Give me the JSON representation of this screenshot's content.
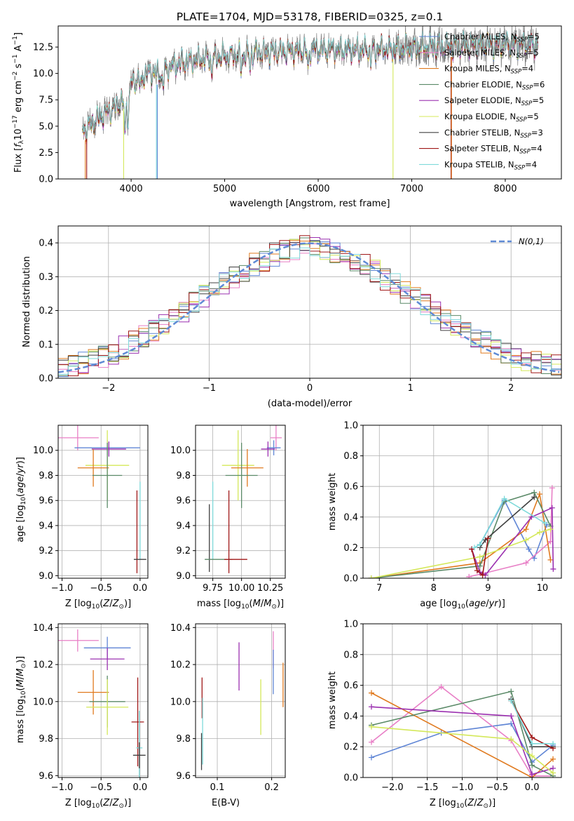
{
  "title": "PLATE=1704, MJD=53178, FIBERID=0325, z=0.1",
  "chart_data": [
    {
      "id": "spectrum",
      "type": "line",
      "title": "PLATE=1704, MJD=53178, FIBERID=0325, z=0.1",
      "xlabel": "wavelength [Angstrom, rest frame]",
      "ylabel": "Flux [f_λ 10^-17 erg cm^-2 s^-1 A^-1]",
      "xlim": [
        3220,
        8600
      ],
      "ylim": [
        0,
        14.5
      ],
      "xticks": [
        4000,
        5000,
        6000,
        7000,
        8000
      ],
      "yticks": [
        0.0,
        2.5,
        5.0,
        7.5,
        10.0,
        12.5
      ],
      "grid": false,
      "legend_position": "top-right",
      "data_series": {
        "name": "data",
        "color": "#808080"
      },
      "spectrum_shape": {
        "wavelength": [
          3500,
          3600,
          3700,
          3800,
          3900,
          4000,
          4100,
          4200,
          4300,
          4400,
          4500,
          4600,
          4800,
          5000,
          5200,
          5500,
          6000,
          6500,
          7000,
          7500,
          8000,
          8350
        ],
        "flux": [
          4.6,
          5.4,
          6.1,
          6.6,
          7.3,
          9.0,
          9.7,
          10.1,
          9.9,
          10.5,
          10.9,
          11.1,
          11.4,
          11.6,
          11.9,
          12.0,
          12.3,
          12.2,
          12.4,
          12.6,
          12.8,
          12.7
        ]
      },
      "series": [
        {
          "name": "Chabrier MILES, N_SSP=5",
          "color": "#5f85d5"
        },
        {
          "name": "Salpeter MILES, N_SSP=5",
          "color": "#e87fc6"
        },
        {
          "name": "Kroupa MILES, N_SSP=4",
          "color": "#e07a1f"
        },
        {
          "name": "Chabrier ELODIE, N_SSP=6",
          "color": "#5b8a68"
        },
        {
          "name": "Salpeter ELODIE, N_SSP=5",
          "color": "#9b30b0"
        },
        {
          "name": "Kroupa ELODIE, N_SSP=5",
          "color": "#d4e85a"
        },
        {
          "name": "Chabrier STELIB, N_SSP=3",
          "color": "#404040"
        },
        {
          "name": "Salpeter STELIB, N_SSP=4",
          "color": "#a01818"
        },
        {
          "name": "Kroupa STELIB, N_SSP=4",
          "color": "#7fdada"
        }
      ]
    },
    {
      "id": "residuals",
      "type": "step",
      "xlabel": "(data-model)/error",
      "ylabel": "Normed distribution",
      "xlim": [
        -2.5,
        2.5
      ],
      "ylim": [
        0,
        0.45
      ],
      "xticks": [
        -2,
        -1,
        0,
        1,
        2
      ],
      "yticks": [
        0.0,
        0.1,
        0.2,
        0.3,
        0.4
      ],
      "grid": true,
      "legend_position": "top-right",
      "reference": {
        "name": "N(0,1)",
        "color": "#5f8ad5",
        "mean": 0,
        "sigma": 1
      },
      "bins_center": [
        -2.45,
        -2.35,
        -2.25,
        -2.15,
        -2.05,
        -1.95,
        -1.85,
        -1.75,
        -1.65,
        -1.55,
        -1.45,
        -1.35,
        -1.25,
        -1.15,
        -1.05,
        -0.95,
        -0.85,
        -0.75,
        -0.65,
        -0.55,
        -0.45,
        -0.35,
        -0.25,
        -0.15,
        -0.05,
        0.05,
        0.15,
        0.25,
        0.35,
        0.45,
        0.55,
        0.65,
        0.75,
        0.85,
        0.95,
        1.05,
        1.15,
        1.25,
        1.35,
        1.45,
        1.55,
        1.65,
        1.75,
        1.85,
        1.95,
        2.05,
        2.15,
        2.25,
        2.35,
        2.45
      ],
      "base_values": [
        0.03,
        0.035,
        0.045,
        0.055,
        0.065,
        0.075,
        0.09,
        0.105,
        0.125,
        0.14,
        0.155,
        0.175,
        0.2,
        0.22,
        0.24,
        0.26,
        0.28,
        0.3,
        0.32,
        0.335,
        0.35,
        0.365,
        0.375,
        0.385,
        0.39,
        0.39,
        0.385,
        0.375,
        0.365,
        0.35,
        0.335,
        0.315,
        0.295,
        0.275,
        0.255,
        0.235,
        0.215,
        0.195,
        0.175,
        0.155,
        0.135,
        0.12,
        0.105,
        0.09,
        0.075,
        0.065,
        0.055,
        0.045,
        0.04,
        0.035
      ]
    },
    {
      "id": "age-vs-Z",
      "type": "errorbar",
      "xlabel": "Z [log10(Z/Z⊙)]",
      "ylabel": "age [log10(age/yr)]",
      "xlim": [
        -1.05,
        0.1
      ],
      "ylim": [
        8.98,
        10.2
      ],
      "xticks": [
        -1.0,
        -0.5,
        0.0
      ],
      "yticks": [
        9.0,
        9.2,
        9.4,
        9.6,
        9.8,
        10.0
      ],
      "grid": true,
      "points": [
        {
          "color": "#e87fc6",
          "x": -0.8,
          "xerr": 0.27,
          "y": 10.1,
          "yerr": 0.1
        },
        {
          "color": "#5f85d5",
          "x": -0.42,
          "xerr": 0.42,
          "y": 10.02,
          "yerr": 0.06
        },
        {
          "color": "#9b30b0",
          "x": -0.4,
          "xerr": 0.22,
          "y": 10.01,
          "yerr": 0.06
        },
        {
          "color": "#d4e85a",
          "x": -0.42,
          "xerr": 0.28,
          "y": 9.88,
          "yerr": 0.28
        },
        {
          "color": "#e07a1f",
          "x": -0.6,
          "xerr": 0.2,
          "y": 9.86,
          "yerr": 0.15
        },
        {
          "color": "#5b8a68",
          "x": -0.42,
          "xerr": 0.19,
          "y": 9.8,
          "yerr": 0.26
        },
        {
          "color": "#a01818",
          "x": -0.04,
          "xerr": 0.0,
          "y": 9.35,
          "yerr": 0.33
        },
        {
          "color": "#7fdada",
          "x": 0.0,
          "xerr": 0.0,
          "y": 9.44,
          "yerr": 0.31
        },
        {
          "color": "#404040",
          "x": 0.0,
          "xerr": 0.08,
          "y": 9.13,
          "yerr": 0.0
        }
      ]
    },
    {
      "id": "age-vs-mass",
      "type": "errorbar",
      "xlabel": "mass [log10(M/M⊙)]",
      "ylabel": "",
      "xlim": [
        9.6,
        10.38
      ],
      "ylim": [
        8.98,
        10.2
      ],
      "xticks": [
        9.75,
        10.0,
        10.25
      ],
      "yticks": [
        9.0,
        9.2,
        9.4,
        9.6,
        9.8,
        10.0
      ],
      "grid": true,
      "points": [
        {
          "color": "#e87fc6",
          "x": 10.3,
          "xerr": 0.05,
          "y": 10.1,
          "yerr": 0.1
        },
        {
          "color": "#5f85d5",
          "x": 10.28,
          "xerr": 0.06,
          "y": 10.02,
          "yerr": 0.06
        },
        {
          "color": "#9b30b0",
          "x": 10.23,
          "xerr": 0.06,
          "y": 10.01,
          "yerr": 0.06
        },
        {
          "color": "#d4e85a",
          "x": 9.97,
          "xerr": 0.14,
          "y": 9.88,
          "yerr": 0.28
        },
        {
          "color": "#e07a1f",
          "x": 10.05,
          "xerr": 0.14,
          "y": 9.86,
          "yerr": 0.15
        },
        {
          "color": "#5b8a68",
          "x": 10.0,
          "xerr": 0.14,
          "y": 9.8,
          "yerr": 0.26
        },
        {
          "color": "#a01818",
          "x": 9.89,
          "xerr": 0.0,
          "y": 9.35,
          "yerr": 0.33
        },
        {
          "color": "#7fdada",
          "x": 9.75,
          "xerr": 0.0,
          "y": 9.44,
          "yerr": 0.31
        },
        {
          "color": "#404040",
          "x": 9.72,
          "xerr": 0.0,
          "y": 9.3,
          "yerr": 0.27
        },
        {
          "color": "#5b8a68",
          "x": 9.8,
          "xerr": 0.12,
          "y": 9.13,
          "yerr": 0.0
        },
        {
          "color": "#a01818",
          "x": 9.95,
          "xerr": 0.1,
          "y": 9.13,
          "yerr": 0.0
        }
      ]
    },
    {
      "id": "weight-vs-age",
      "type": "line",
      "xlabel": "age [log10(age/yr)]",
      "ylabel": "mass weight",
      "xlim": [
        6.7,
        10.35
      ],
      "ylim": [
        0,
        1.0
      ],
      "xticks": [
        7,
        8,
        9,
        10
      ],
      "yticks": [
        0.0,
        0.2,
        0.4,
        0.6,
        0.8,
        1.0
      ],
      "grid": true,
      "series": [
        {
          "color": "#5f85d5",
          "x": [
            8.85,
            9.3,
            9.75,
            9.85,
            10.08
          ],
          "y": [
            0.22,
            0.51,
            0.19,
            0.13,
            0.35
          ]
        },
        {
          "color": "#e87fc6",
          "x": [
            8.65,
            8.9,
            9.7,
            10.15,
            10.18
          ],
          "y": [
            0.01,
            0.03,
            0.1,
            0.24,
            0.59
          ]
        },
        {
          "color": "#e07a1f",
          "x": [
            6.85,
            8.85,
            9.7,
            9.95,
            10.15
          ],
          "y": [
            0.0,
            0.1,
            0.32,
            0.55,
            0.12
          ]
        },
        {
          "color": "#5b8a68",
          "x": [
            6.85,
            8.85,
            9.3,
            9.85,
            10.15
          ],
          "y": [
            0.0,
            0.08,
            0.5,
            0.56,
            0.34
          ]
        },
        {
          "color": "#9b30b0",
          "x": [
            8.7,
            8.85,
            8.95,
            9.8,
            10.18,
            10.2
          ],
          "y": [
            0.19,
            0.04,
            0.02,
            0.4,
            0.46,
            0.06
          ]
        },
        {
          "color": "#d4e85a",
          "x": [
            6.85,
            8.85,
            9.7,
            9.95,
            10.15
          ],
          "y": [
            0.0,
            0.14,
            0.25,
            0.3,
            0.32
          ]
        },
        {
          "color": "#404040",
          "x": [
            8.85,
            8.95,
            9.85
          ],
          "y": [
            0.2,
            0.25,
            0.53
          ]
        },
        {
          "color": "#a01818",
          "x": [
            8.7,
            8.8,
            8.9,
            9.0
          ],
          "y": [
            0.19,
            0.05,
            0.02,
            0.26
          ]
        },
        {
          "color": "#7fdada",
          "x": [
            8.75,
            8.85,
            9.3,
            10.05
          ],
          "y": [
            0.2,
            0.22,
            0.52,
            0.36
          ]
        }
      ]
    },
    {
      "id": "mass-vs-Z",
      "type": "errorbar",
      "xlabel": "Z [log10(Z/Z⊙)]",
      "ylabel": "mass [log10(M/M⊙)]",
      "xlim": [
        -1.05,
        0.1
      ],
      "ylim": [
        9.59,
        10.42
      ],
      "xticks": [
        -1.0,
        -0.5,
        0.0
      ],
      "yticks": [
        9.6,
        9.8,
        10.0,
        10.2,
        10.4
      ],
      "grid": true,
      "points": [
        {
          "color": "#e87fc6",
          "x": -0.8,
          "xerr": 0.27,
          "y": 10.33,
          "yerr": 0.06
        },
        {
          "color": "#5f85d5",
          "x": -0.42,
          "xerr": 0.3,
          "y": 10.29,
          "yerr": 0.06
        },
        {
          "color": "#9b30b0",
          "x": -0.42,
          "xerr": 0.22,
          "y": 10.23,
          "yerr": 0.06
        },
        {
          "color": "#e07a1f",
          "x": -0.6,
          "xerr": 0.2,
          "y": 10.05,
          "yerr": 0.12
        },
        {
          "color": "#5b8a68",
          "x": -0.42,
          "xerr": 0.23,
          "y": 10.0,
          "yerr": 0.14
        },
        {
          "color": "#d4e85a",
          "x": -0.42,
          "xerr": 0.27,
          "y": 9.97,
          "yerr": 0.15
        },
        {
          "color": "#a01818",
          "x": -0.03,
          "xerr": 0.08,
          "y": 9.89,
          "yerr": 0.24
        },
        {
          "color": "#7fdada",
          "x": -0.01,
          "xerr": 0.04,
          "y": 9.75,
          "yerr": 0.2
        },
        {
          "color": "#404040",
          "x": -0.01,
          "xerr": 0.08,
          "y": 9.71,
          "yerr": 0.07
        }
      ]
    },
    {
      "id": "mass-vs-ebv",
      "type": "errorbar",
      "xlabel": "E(B-V)",
      "ylabel": "",
      "xlim": [
        0.06,
        0.225
      ],
      "ylim": [
        9.59,
        10.42
      ],
      "xticks": [
        0.1,
        0.2
      ],
      "yticks": [
        9.6,
        9.8,
        10.0,
        10.2,
        10.4
      ],
      "grid": true,
      "points": [
        {
          "color": "#a01818",
          "x": 0.072,
          "xerr": 0.0,
          "y": 10.02,
          "yerr": 0.11
        },
        {
          "color": "#7fdada",
          "x": 0.073,
          "xerr": 0.0,
          "y": 9.84,
          "yerr": 0.18
        },
        {
          "color": "#404040",
          "x": 0.071,
          "xerr": 0.0,
          "y": 9.73,
          "yerr": 0.1
        },
        {
          "color": "#9b30b0",
          "x": 0.14,
          "xerr": 0.0,
          "y": 10.19,
          "yerr": 0.13
        },
        {
          "color": "#d4e85a",
          "x": 0.18,
          "xerr": 0.0,
          "y": 9.97,
          "yerr": 0.15
        },
        {
          "color": "#e87fc6",
          "x": 0.203,
          "xerr": 0.0,
          "y": 10.28,
          "yerr": 0.1
        },
        {
          "color": "#5f85d5",
          "x": 0.203,
          "xerr": 0.0,
          "y": 10.16,
          "yerr": 0.12
        },
        {
          "color": "#e07a1f",
          "x": 0.221,
          "xerr": 0.0,
          "y": 10.09,
          "yerr": 0.12
        }
      ]
    },
    {
      "id": "weight-vs-Z",
      "type": "line",
      "xlabel": "Z [log10(Z/Z⊙)]",
      "ylabel": "mass weight",
      "xlim": [
        -2.42,
        0.42
      ],
      "ylim": [
        0,
        1.0
      ],
      "xticks": [
        -2.0,
        -1.5,
        -1.0,
        -0.5,
        0.0
      ],
      "yticks": [
        0.0,
        0.2,
        0.4,
        0.6,
        0.8,
        1.0
      ],
      "grid": true,
      "series": [
        {
          "color": "#5f85d5",
          "x": [
            -2.3,
            -1.3,
            -0.3,
            0.0,
            0.3
          ],
          "y": [
            0.13,
            0.29,
            0.35,
            0.1,
            0.21
          ]
        },
        {
          "color": "#e87fc6",
          "x": [
            -2.3,
            -1.3,
            -0.3,
            0.0,
            0.3
          ],
          "y": [
            0.23,
            0.59,
            0.24,
            0.01,
            0.01
          ]
        },
        {
          "color": "#e07a1f",
          "x": [
            -2.3,
            0.0,
            0.3
          ],
          "y": [
            0.55,
            0.0,
            0.12
          ]
        },
        {
          "color": "#5b8a68",
          "x": [
            -2.3,
            -0.3,
            0.0,
            0.3
          ],
          "y": [
            0.34,
            0.56,
            0.08,
            0.01
          ]
        },
        {
          "color": "#9b30b0",
          "x": [
            -2.3,
            -0.3,
            0.0,
            0.3
          ],
          "y": [
            0.46,
            0.4,
            0.02,
            0.06
          ]
        },
        {
          "color": "#d4e85a",
          "x": [
            -2.3,
            -0.3,
            0.0,
            0.3
          ],
          "y": [
            0.33,
            0.25,
            0.14,
            0.03
          ]
        },
        {
          "color": "#404040",
          "x": [
            -0.3,
            0.0,
            0.3
          ],
          "y": [
            0.51,
            0.2,
            0.2
          ]
        },
        {
          "color": "#a01818",
          "x": [
            -0.3,
            0.0,
            0.3
          ],
          "y": [
            0.5,
            0.26,
            0.19
          ]
        },
        {
          "color": "#7fdada",
          "x": [
            -0.3,
            0.0,
            0.3
          ],
          "y": [
            0.5,
            0.22,
            0.22
          ]
        }
      ]
    }
  ]
}
